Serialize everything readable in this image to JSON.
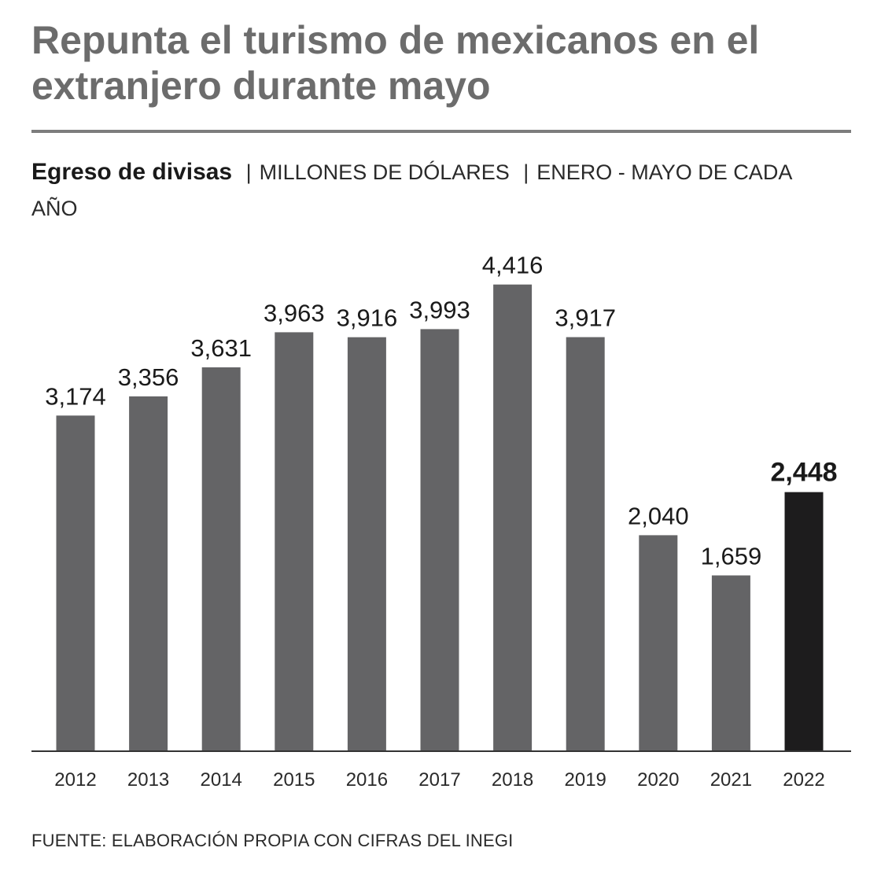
{
  "header": {
    "title": "Repunta el turismo de mexicanos en el extranjero durante mayo"
  },
  "subtitle": {
    "label": "Egreso de divisas",
    "unit": "MILLONES DE DÓLARES",
    "period": "ENERO - MAYO DE CADA AÑO",
    "separator": "|"
  },
  "footer": {
    "source": "FUENTE: ELABORACIÓN PROPIA CON CIFRAS DEL INEGI"
  },
  "colors": {
    "bar": "#646466",
    "highlight_bar": "#1d1c1d",
    "axis": "#333333",
    "headline": "#6c6c6c"
  },
  "chart_data": {
    "type": "bar",
    "title": "Egreso de divisas",
    "ylabel": "Millones de dólares",
    "xlabel": "",
    "categories": [
      "2012",
      "2013",
      "2014",
      "2015",
      "2016",
      "2017",
      "2018",
      "2019",
      "2020",
      "2021",
      "2022"
    ],
    "values": [
      3174,
      3356,
      3631,
      3963,
      3916,
      3993,
      4416,
      3917,
      2040,
      1659,
      2448
    ],
    "value_labels": [
      "3,174",
      "3,356",
      "3,631",
      "3,963",
      "3,916",
      "3,993",
      "4,416",
      "3,917",
      "2,040",
      "1,659",
      "2,448"
    ],
    "highlight_category": "2022",
    "ylim": [
      0,
      4600
    ],
    "grid": false,
    "legend": "none"
  }
}
